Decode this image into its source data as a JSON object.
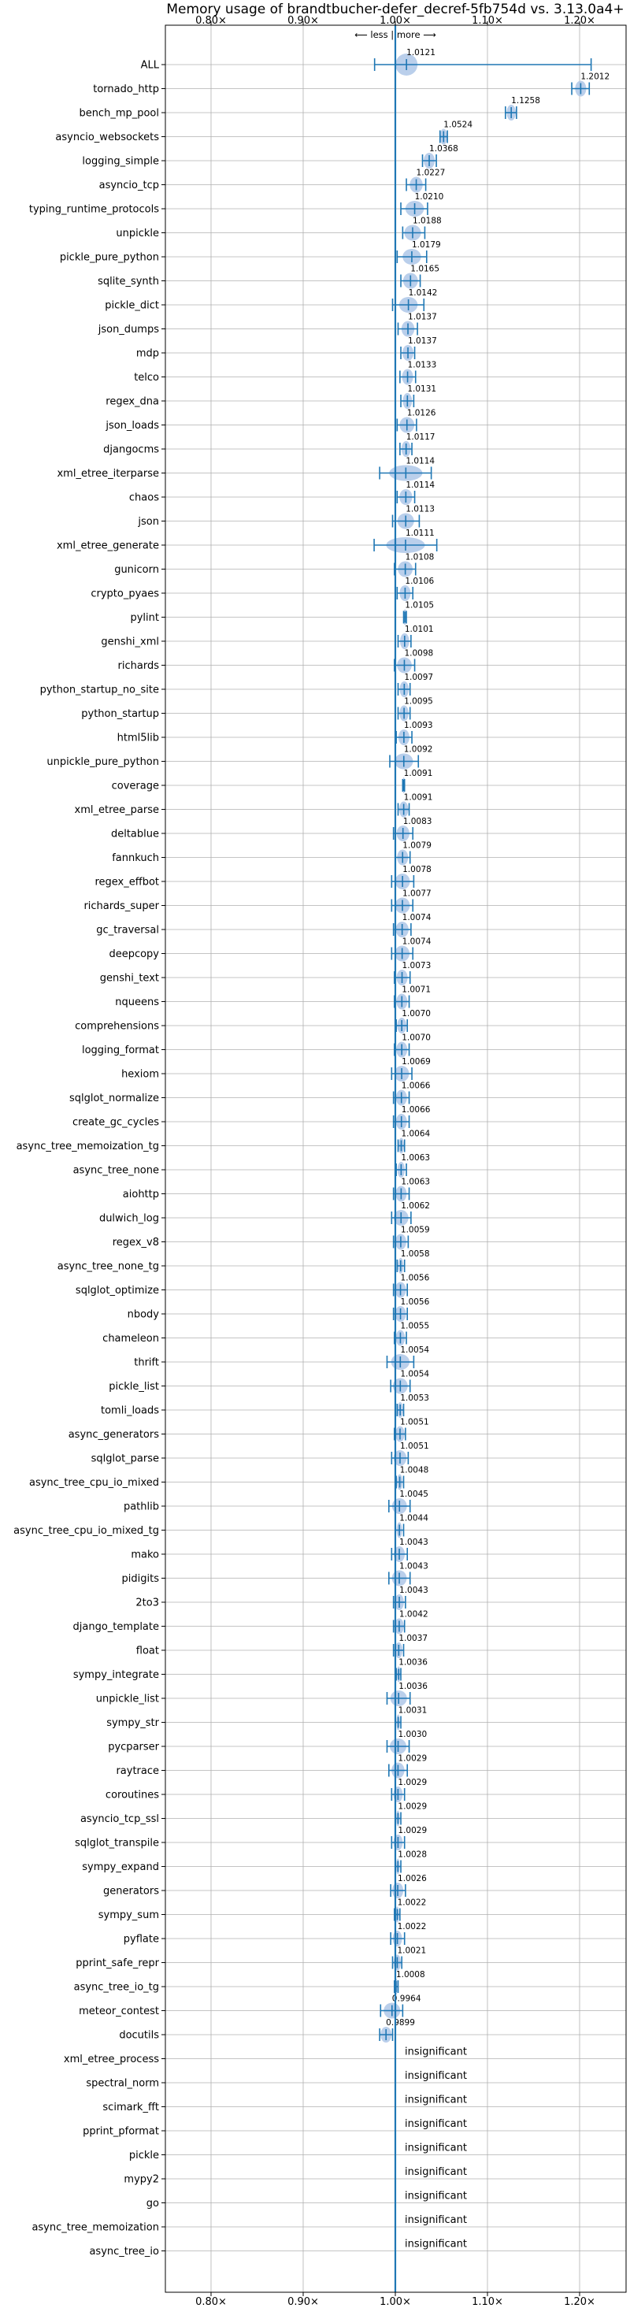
{
  "chart_data": {
    "type": "scatter",
    "title": "Memory usage of brandtbucher-defer_decref-5fb754d vs. 3.13.0a4+",
    "direction_label": "⟵ less | more ⟶",
    "x_axis": {
      "scale": "linear",
      "range": [
        0.75,
        1.25
      ],
      "ticks": [
        0.8,
        0.9,
        1.0,
        1.1,
        1.2
      ],
      "tick_labels": [
        "0.80×",
        "0.90×",
        "1.00×",
        "1.10×",
        "1.20×"
      ],
      "grid": true,
      "ticks_top_and_bottom": true
    },
    "reference_line": 1.0,
    "colors": {
      "line": "#1f77b4",
      "violin": "#aec7e8",
      "grid": "#b0b0b0",
      "text": "#000000"
    },
    "significant": [
      {
        "name": "ALL",
        "value": 1.0121,
        "min": 0.9775,
        "max": 1.2125,
        "spread": 0.012
      },
      {
        "name": "tornado_http",
        "value": 1.2012,
        "min": 1.1915,
        "max": 1.2105,
        "spread": 0.006
      },
      {
        "name": "bench_mp_pool",
        "value": 1.1258,
        "min": 1.1195,
        "max": 1.1315,
        "spread": 0.005
      },
      {
        "name": "asyncio_websockets",
        "value": 1.0524,
        "min": 1.0485,
        "max": 1.0565,
        "spread": 0.004
      },
      {
        "name": "logging_simple",
        "value": 1.0368,
        "min": 1.0295,
        "max": 1.0445,
        "spread": 0.006
      },
      {
        "name": "asyncio_tcp",
        "value": 1.0227,
        "min": 1.012,
        "max": 1.033,
        "spread": 0.007
      },
      {
        "name": "typing_runtime_protocols",
        "value": 1.021,
        "min": 1.006,
        "max": 1.035,
        "spread": 0.01
      },
      {
        "name": "unpickle",
        "value": 1.0188,
        "min": 1.008,
        "max": 1.032,
        "spread": 0.009
      },
      {
        "name": "pickle_pure_python",
        "value": 1.0179,
        "min": 1.002,
        "max": 1.034,
        "spread": 0.01
      },
      {
        "name": "sqlite_synth",
        "value": 1.0165,
        "min": 1.006,
        "max": 1.027,
        "spread": 0.008
      },
      {
        "name": "pickle_dict",
        "value": 1.0142,
        "min": 0.997,
        "max": 1.031,
        "spread": 0.01
      },
      {
        "name": "json_dumps",
        "value": 1.0137,
        "min": 1.003,
        "max": 1.024,
        "spread": 0.007
      },
      {
        "name": "mdp",
        "value": 1.0137,
        "min": 1.006,
        "max": 1.021,
        "spread": 0.006
      },
      {
        "name": "telco",
        "value": 1.0133,
        "min": 1.005,
        "max": 1.022,
        "spread": 0.006
      },
      {
        "name": "regex_dna",
        "value": 1.0131,
        "min": 1.006,
        "max": 1.02,
        "spread": 0.005
      },
      {
        "name": "json_loads",
        "value": 1.0126,
        "min": 1.002,
        "max": 1.023,
        "spread": 0.008
      },
      {
        "name": "djangocms",
        "value": 1.0117,
        "min": 1.005,
        "max": 1.018,
        "spread": 0.005
      },
      {
        "name": "xml_etree_iterparse",
        "value": 1.0114,
        "min": 0.983,
        "max": 1.039,
        "spread": 0.018
      },
      {
        "name": "chaos",
        "value": 1.0114,
        "min": 1.002,
        "max": 1.021,
        "spread": 0.007
      },
      {
        "name": "json",
        "value": 1.0113,
        "min": 0.997,
        "max": 1.026,
        "spread": 0.009
      },
      {
        "name": "xml_etree_generate",
        "value": 1.0111,
        "min": 0.977,
        "max": 1.045,
        "spread": 0.021
      },
      {
        "name": "gunicorn",
        "value": 1.0108,
        "min": 0.999,
        "max": 1.022,
        "spread": 0.008
      },
      {
        "name": "crypto_pyaes",
        "value": 1.0106,
        "min": 1.002,
        "max": 1.019,
        "spread": 0.006
      },
      {
        "name": "pylint",
        "value": 1.0105,
        "min": 1.009,
        "max": 1.012,
        "spread": 0.002
      },
      {
        "name": "genshi_xml",
        "value": 1.0101,
        "min": 1.003,
        "max": 1.017,
        "spread": 0.005
      },
      {
        "name": "richards",
        "value": 1.0098,
        "min": 0.999,
        "max": 1.021,
        "spread": 0.008
      },
      {
        "name": "python_startup_no_site",
        "value": 1.0097,
        "min": 1.003,
        "max": 1.016,
        "spread": 0.005
      },
      {
        "name": "python_startup",
        "value": 1.0095,
        "min": 1.003,
        "max": 1.016,
        "spread": 0.005
      },
      {
        "name": "html5lib",
        "value": 1.0093,
        "min": 1.001,
        "max": 1.018,
        "spread": 0.006
      },
      {
        "name": "unpickle_pure_python",
        "value": 1.0092,
        "min": 0.994,
        "max": 1.025,
        "spread": 0.01
      },
      {
        "name": "coverage",
        "value": 1.0091,
        "min": 1.008,
        "max": 1.01,
        "spread": 0.001
      },
      {
        "name": "xml_etree_parse",
        "value": 1.0091,
        "min": 1.003,
        "max": 1.015,
        "spread": 0.005
      },
      {
        "name": "deltablue",
        "value": 1.0083,
        "min": 0.998,
        "max": 1.019,
        "spread": 0.007
      },
      {
        "name": "fannkuch",
        "value": 1.0079,
        "min": 1.0,
        "max": 1.016,
        "spread": 0.006
      },
      {
        "name": "regex_effbot",
        "value": 1.0078,
        "min": 0.996,
        "max": 1.02,
        "spread": 0.008
      },
      {
        "name": "richards_super",
        "value": 1.0077,
        "min": 0.996,
        "max": 1.019,
        "spread": 0.008
      },
      {
        "name": "gc_traversal",
        "value": 1.0074,
        "min": 0.998,
        "max": 1.017,
        "spread": 0.007
      },
      {
        "name": "deepcopy",
        "value": 1.0074,
        "min": 0.996,
        "max": 1.019,
        "spread": 0.008
      },
      {
        "name": "genshi_text",
        "value": 1.0073,
        "min": 0.999,
        "max": 1.016,
        "spread": 0.006
      },
      {
        "name": "nqueens",
        "value": 1.0071,
        "min": 0.999,
        "max": 1.015,
        "spread": 0.006
      },
      {
        "name": "comprehensions",
        "value": 1.007,
        "min": 1.001,
        "max": 1.013,
        "spread": 0.005
      },
      {
        "name": "logging_format",
        "value": 1.007,
        "min": 0.999,
        "max": 1.015,
        "spread": 0.006
      },
      {
        "name": "hexiom",
        "value": 1.0069,
        "min": 0.996,
        "max": 1.018,
        "spread": 0.008
      },
      {
        "name": "sqlglot_normalize",
        "value": 1.0066,
        "min": 0.998,
        "max": 1.015,
        "spread": 0.006
      },
      {
        "name": "create_gc_cycles",
        "value": 1.0066,
        "min": 0.998,
        "max": 1.015,
        "spread": 0.006
      },
      {
        "name": "async_tree_memoization_tg",
        "value": 1.0064,
        "min": 1.003,
        "max": 1.01,
        "spread": 0.003
      },
      {
        "name": "async_tree_none",
        "value": 1.0063,
        "min": 1.001,
        "max": 1.012,
        "spread": 0.004
      },
      {
        "name": "aiohttp",
        "value": 1.0063,
        "min": 0.998,
        "max": 1.015,
        "spread": 0.006
      },
      {
        "name": "dulwich_log",
        "value": 1.0062,
        "min": 0.996,
        "max": 1.017,
        "spread": 0.008
      },
      {
        "name": "regex_v8",
        "value": 1.0059,
        "min": 0.998,
        "max": 1.014,
        "spread": 0.006
      },
      {
        "name": "async_tree_none_tg",
        "value": 1.0058,
        "min": 1.002,
        "max": 1.01,
        "spread": 0.003
      },
      {
        "name": "sqlglot_optimize",
        "value": 1.0056,
        "min": 0.998,
        "max": 1.013,
        "spread": 0.006
      },
      {
        "name": "nbody",
        "value": 1.0056,
        "min": 0.998,
        "max": 1.013,
        "spread": 0.006
      },
      {
        "name": "chameleon",
        "value": 1.0055,
        "min": 0.999,
        "max": 1.012,
        "spread": 0.005
      },
      {
        "name": "thrift",
        "value": 1.0054,
        "min": 0.991,
        "max": 1.02,
        "spread": 0.01
      },
      {
        "name": "pickle_list",
        "value": 1.0054,
        "min": 0.995,
        "max": 1.016,
        "spread": 0.008
      },
      {
        "name": "tomli_loads",
        "value": 1.0053,
        "min": 1.002,
        "max": 1.009,
        "spread": 0.003
      },
      {
        "name": "async_generators",
        "value": 1.0051,
        "min": 0.999,
        "max": 1.011,
        "spread": 0.005
      },
      {
        "name": "sqlglot_parse",
        "value": 1.0051,
        "min": 0.996,
        "max": 1.014,
        "spread": 0.007
      },
      {
        "name": "async_tree_cpu_io_mixed",
        "value": 1.0048,
        "min": 1.001,
        "max": 1.009,
        "spread": 0.003
      },
      {
        "name": "pathlib",
        "value": 1.0045,
        "min": 0.993,
        "max": 1.016,
        "spread": 0.008
      },
      {
        "name": "async_tree_cpu_io_mixed_tg",
        "value": 1.0044,
        "min": 1.0,
        "max": 1.009,
        "spread": 0.003
      },
      {
        "name": "mako",
        "value": 1.0043,
        "min": 0.996,
        "max": 1.013,
        "spread": 0.006
      },
      {
        "name": "pidigits",
        "value": 1.0043,
        "min": 0.993,
        "max": 1.016,
        "spread": 0.008
      },
      {
        "name": "2to3",
        "value": 1.0043,
        "min": 0.998,
        "max": 1.011,
        "spread": 0.005
      },
      {
        "name": "django_template",
        "value": 1.0042,
        "min": 0.998,
        "max": 1.01,
        "spread": 0.005
      },
      {
        "name": "float",
        "value": 1.0037,
        "min": 0.998,
        "max": 1.009,
        "spread": 0.004
      },
      {
        "name": "sympy_integrate",
        "value": 1.0036,
        "min": 1.001,
        "max": 1.006,
        "spread": 0.002
      },
      {
        "name": "unpickle_list",
        "value": 1.0036,
        "min": 0.991,
        "max": 1.016,
        "spread": 0.009
      },
      {
        "name": "sympy_str",
        "value": 1.0031,
        "min": 1.0,
        "max": 1.006,
        "spread": 0.002
      },
      {
        "name": "pycparser",
        "value": 1.003,
        "min": 0.991,
        "max": 1.015,
        "spread": 0.009
      },
      {
        "name": "raytrace",
        "value": 1.0029,
        "min": 0.993,
        "max": 1.013,
        "spread": 0.007
      },
      {
        "name": "coroutines",
        "value": 1.0029,
        "min": 0.996,
        "max": 1.01,
        "spread": 0.005
      },
      {
        "name": "asyncio_tcp_ssl",
        "value": 1.0029,
        "min": 1.0,
        "max": 1.006,
        "spread": 0.002
      },
      {
        "name": "sqlglot_transpile",
        "value": 1.0029,
        "min": 0.996,
        "max": 1.01,
        "spread": 0.005
      },
      {
        "name": "sympy_expand",
        "value": 1.0028,
        "min": 1.0,
        "max": 1.006,
        "spread": 0.002
      },
      {
        "name": "generators",
        "value": 1.0026,
        "min": 0.995,
        "max": 1.011,
        "spread": 0.006
      },
      {
        "name": "sympy_sum",
        "value": 1.0022,
        "min": 0.999,
        "max": 1.005,
        "spread": 0.002
      },
      {
        "name": "pyflate",
        "value": 1.0022,
        "min": 0.995,
        "max": 1.01,
        "spread": 0.005
      },
      {
        "name": "pprint_safe_repr",
        "value": 1.0021,
        "min": 0.997,
        "max": 1.007,
        "spread": 0.004
      },
      {
        "name": "async_tree_io_tg",
        "value": 1.0008,
        "min": 0.999,
        "max": 1.003,
        "spread": 0.002
      },
      {
        "name": "meteor_contest",
        "value": 0.9964,
        "min": 0.984,
        "max": 1.008,
        "spread": 0.009
      },
      {
        "name": "docutils",
        "value": 0.9899,
        "min": 0.983,
        "max": 0.997,
        "spread": 0.006
      }
    ],
    "insignificant_label": "insignificant",
    "insignificant": [
      "xml_etree_process",
      "spectral_norm",
      "scimark_fft",
      "pprint_pformat",
      "pickle",
      "mypy2",
      "go",
      "async_tree_memoization",
      "async_tree_io"
    ]
  }
}
